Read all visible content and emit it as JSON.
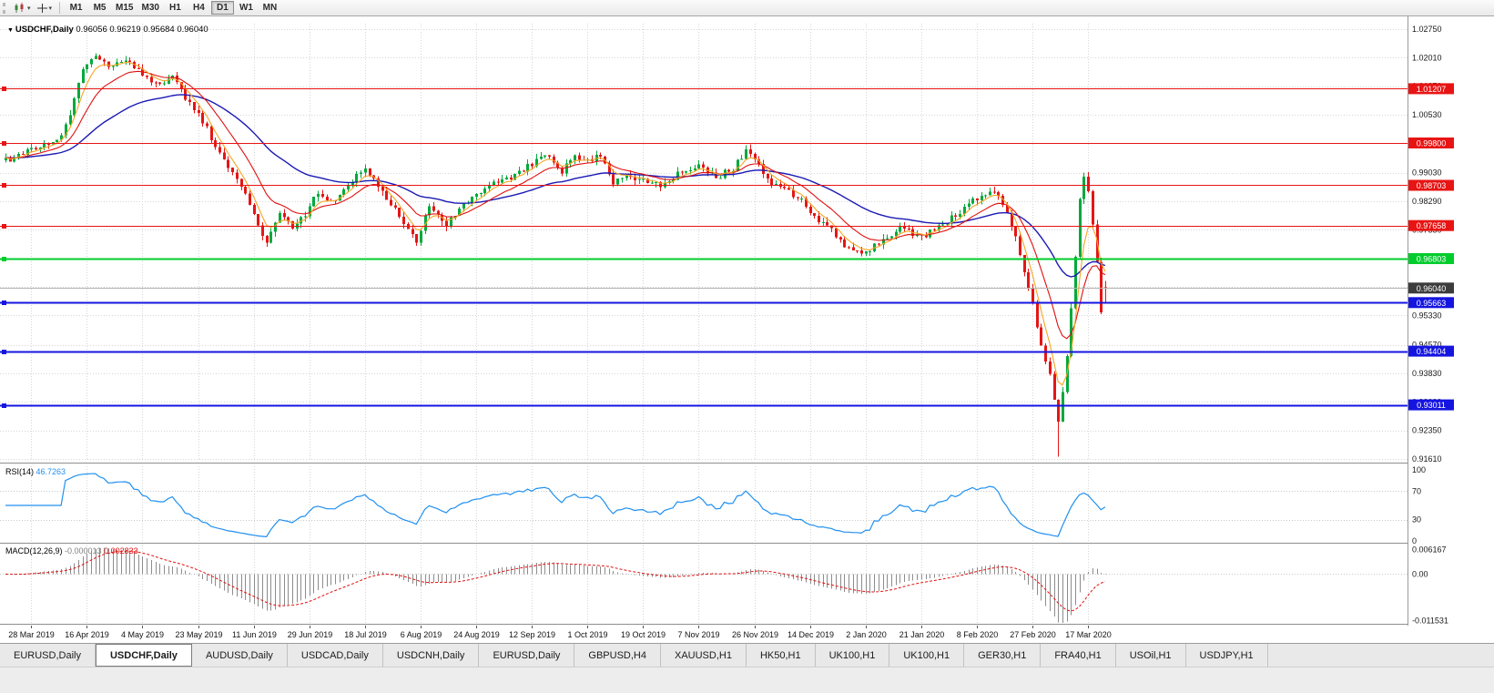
{
  "toolbar": {
    "icon_buttons": [
      {
        "name": "chart-type"
      },
      {
        "name": "crosshair"
      }
    ],
    "timeframes": [
      "M1",
      "M5",
      "M15",
      "M30",
      "H1",
      "H4",
      "D1",
      "W1",
      "MN"
    ],
    "active_timeframe": "D1"
  },
  "main_chart": {
    "symbol_label": "USDCHF,Daily",
    "ohlc": {
      "open": "0.96056",
      "high": "0.96219",
      "low": "0.95684",
      "close": "0.96040"
    },
    "y_axis_labels": [
      "1.02750",
      "1.02010",
      "1.01270",
      "1.00530",
      "0.99790",
      "0.99030",
      "0.98290",
      "0.97550",
      "0.96810",
      "0.96070",
      "0.95330",
      "0.94570",
      "0.93830",
      "0.93090",
      "0.92350",
      "0.91610"
    ],
    "levels": [
      {
        "label": "1.01207",
        "price": 1.01207,
        "kind": "resistance",
        "color": "#e81414"
      },
      {
        "label": "0.99800",
        "price": 0.998,
        "kind": "resistance",
        "color": "#e81414"
      },
      {
        "label": "0.98703",
        "price": 0.98703,
        "kind": "resistance",
        "color": "#e81414"
      },
      {
        "label": "0.97658",
        "price": 0.97658,
        "kind": "resistance",
        "color": "#e81414"
      },
      {
        "label": "0.96803",
        "price": 0.96803,
        "kind": "support",
        "color": "#00cc2c"
      },
      {
        "label": "0.95663",
        "price": 0.95663,
        "kind": "support",
        "color": "#1515e0"
      },
      {
        "label": "0.94404",
        "price": 0.94404,
        "kind": "support",
        "color": "#1515e0"
      },
      {
        "label": "0.93011",
        "price": 0.93011,
        "kind": "support",
        "color": "#1515e0"
      }
    ],
    "current_price": {
      "label": "0.96040",
      "price": 0.9604,
      "line_color": "#b4b4b4",
      "label_bg": "#3c3c3c"
    }
  },
  "rsi_panel": {
    "name": "RSI(14)",
    "value": "46.7263",
    "axis_labels": [
      "100",
      "70",
      "30",
      "0"
    ],
    "axis_values": [
      100,
      70,
      30,
      0
    ],
    "level_lines": [
      70,
      30
    ],
    "line_color": "#2090f0"
  },
  "macd_panel": {
    "name": "MACD(12,26,9)",
    "main_value": "-0.000013",
    "signal_value": "0.002833",
    "axis_labels": [
      "0.006167",
      "0.00",
      "-0.011531"
    ],
    "axis_values": [
      0.006167,
      0,
      -0.011531
    ],
    "histogram_color": "#8c8c8c",
    "signal_color": "#e01010"
  },
  "time_axis": {
    "labels": [
      "28 Mar 2019",
      "16 Apr 2019",
      "4 May 2019",
      "23 May 2019",
      "11 Jun 2019",
      "29 Jun 2019",
      "18 Jul 2019",
      "6 Aug 2019",
      "24 Aug 2019",
      "12 Sep 2019",
      "1 Oct 2019",
      "19 Oct 2019",
      "7 Nov 2019",
      "26 Nov 2019",
      "14 Dec 2019",
      "2 Jan 2020",
      "21 Jan 2020",
      "8 Feb 2020",
      "27 Feb 2020",
      "17 Mar 2020"
    ]
  },
  "tabs": [
    {
      "label": "EURUSD,Daily",
      "active": false
    },
    {
      "label": "USDCHF,Daily",
      "active": true
    },
    {
      "label": "AUDUSD,Daily",
      "active": false
    },
    {
      "label": "USDCAD,Daily",
      "active": false
    },
    {
      "label": "USDCNH,Daily",
      "active": false
    },
    {
      "label": "EURUSD,Daily",
      "active": false
    },
    {
      "label": "GBPUSD,H4",
      "active": false
    },
    {
      "label": "XAUUSD,H1",
      "active": false
    },
    {
      "label": "HK50,H1",
      "active": false
    },
    {
      "label": "UK100,H1",
      "active": false
    },
    {
      "label": "UK100,H1",
      "active": false
    },
    {
      "label": "GER30,H1",
      "active": false
    },
    {
      "label": "FRA40,H1",
      "active": false
    },
    {
      "label": "USOil,H1",
      "active": false
    },
    {
      "label": "USDJPY,H1",
      "active": false
    }
  ],
  "colors": {
    "up": "#00a93c",
    "down": "#e41616",
    "ma_fast": "#f5a623",
    "ma_mid": "#e01010",
    "ma_slow": "#1a1ab4",
    "grid": "#d6d6d6",
    "axis_text": "#1a1a1a"
  },
  "chart_data": {
    "type": "candlestick",
    "symbol": "USDCHF",
    "timeframe": "Daily",
    "current_quote": {
      "open": 0.96056,
      "high": 0.96219,
      "low": 0.95684,
      "close": 0.9604
    },
    "y_range": [
      0.9161,
      1.0275
    ],
    "x_tick_labels": [
      "28 Mar 2019",
      "16 Apr 2019",
      "4 May 2019",
      "23 May 2019",
      "11 Jun 2019",
      "29 Jun 2019",
      "18 Jul 2019",
      "6 Aug 2019",
      "24 Aug 2019",
      "12 Sep 2019",
      "1 Oct 2019",
      "19 Oct 2019",
      "7 Nov 2019",
      "26 Nov 2019",
      "14 Dec 2019",
      "2 Jan 2020",
      "21 Jan 2020",
      "8 Feb 2020",
      "27 Feb 2020",
      "17 Mar 2020"
    ],
    "bars_per_tick": 13,
    "bar_count": 258,
    "extreme_low": 0.9167,
    "horizontal_lines": [
      1.01207,
      0.998,
      0.98703,
      0.97658,
      0.96803,
      0.95663,
      0.94404,
      0.93011
    ],
    "indicators": [
      {
        "name": "RSI",
        "period": 14,
        "last": 46.7263
      },
      {
        "name": "MACD",
        "fast": 12,
        "slow": 26,
        "signal": 9,
        "last_main": -1.3e-05,
        "last_signal": 0.002833
      },
      {
        "name": "MovingAverages",
        "colors": [
          "#f5a623",
          "#e01010",
          "#1a1ab4"
        ]
      }
    ],
    "price_path": [
      [
        0,
        0.9935
      ],
      [
        4,
        0.9952
      ],
      [
        8,
        0.9972
      ],
      [
        12,
        0.9985
      ],
      [
        15,
        1.0055
      ],
      [
        18,
        1.0165
      ],
      [
        21,
        1.021
      ],
      [
        24,
        1.0175
      ],
      [
        28,
        1.02
      ],
      [
        32,
        1.016
      ],
      [
        36,
        1.0128
      ],
      [
        39,
        1.015
      ],
      [
        43,
        1.008
      ],
      [
        46,
        1.0038
      ],
      [
        50,
        0.9952
      ],
      [
        54,
        0.9885
      ],
      [
        58,
        0.9802
      ],
      [
        61,
        0.9718
      ],
      [
        64,
        0.9798
      ],
      [
        67,
        0.976
      ],
      [
        70,
        0.9795
      ],
      [
        73,
        0.9852
      ],
      [
        76,
        0.9824
      ],
      [
        80,
        0.9878
      ],
      [
        84,
        0.9908
      ],
      [
        88,
        0.9855
      ],
      [
        92,
        0.979
      ],
      [
        96,
        0.9718
      ],
      [
        99,
        0.9822
      ],
      [
        103,
        0.9766
      ],
      [
        107,
        0.9828
      ],
      [
        110,
        0.9844
      ],
      [
        114,
        0.9878
      ],
      [
        118,
        0.9893
      ],
      [
        123,
        0.9928
      ],
      [
        127,
        0.9944
      ],
      [
        130,
        0.9906
      ],
      [
        133,
        0.9948
      ],
      [
        136,
        0.9934
      ],
      [
        139,
        0.995
      ],
      [
        142,
        0.9872
      ],
      [
        145,
        0.9898
      ],
      [
        149,
        0.9885
      ],
      [
        153,
        0.987
      ],
      [
        157,
        0.9898
      ],
      [
        162,
        0.9924
      ],
      [
        166,
        0.989
      ],
      [
        170,
        0.9914
      ],
      [
        173,
        0.9962
      ],
      [
        175,
        0.9938
      ],
      [
        178,
        0.988
      ],
      [
        182,
        0.9856
      ],
      [
        186,
        0.9836
      ],
      [
        188,
        0.9796
      ],
      [
        192,
        0.977
      ],
      [
        196,
        0.9718
      ],
      [
        201,
        0.9694
      ],
      [
        205,
        0.9732
      ],
      [
        209,
        0.9762
      ],
      [
        214,
        0.9738
      ],
      [
        218,
        0.9764
      ],
      [
        222,
        0.9794
      ],
      [
        227,
        0.9838
      ],
      [
        231,
        0.9854
      ],
      [
        234,
        0.98
      ],
      [
        236,
        0.9736
      ],
      [
        238,
        0.9646
      ],
      [
        240,
        0.956
      ],
      [
        242,
        0.9456
      ],
      [
        244,
        0.9385
      ],
      [
        245,
        0.9312
      ],
      [
        246,
        0.9252
      ],
      [
        247,
        0.9338
      ],
      [
        248,
        0.942
      ],
      [
        249,
        0.9545
      ],
      [
        250,
        0.9688
      ],
      [
        251,
        0.9838
      ],
      [
        252,
        0.9888
      ],
      [
        253,
        0.9858
      ],
      [
        254,
        0.9775
      ],
      [
        255,
        0.9665
      ],
      [
        256,
        0.9548
      ],
      [
        257,
        0.9604
      ]
    ]
  }
}
